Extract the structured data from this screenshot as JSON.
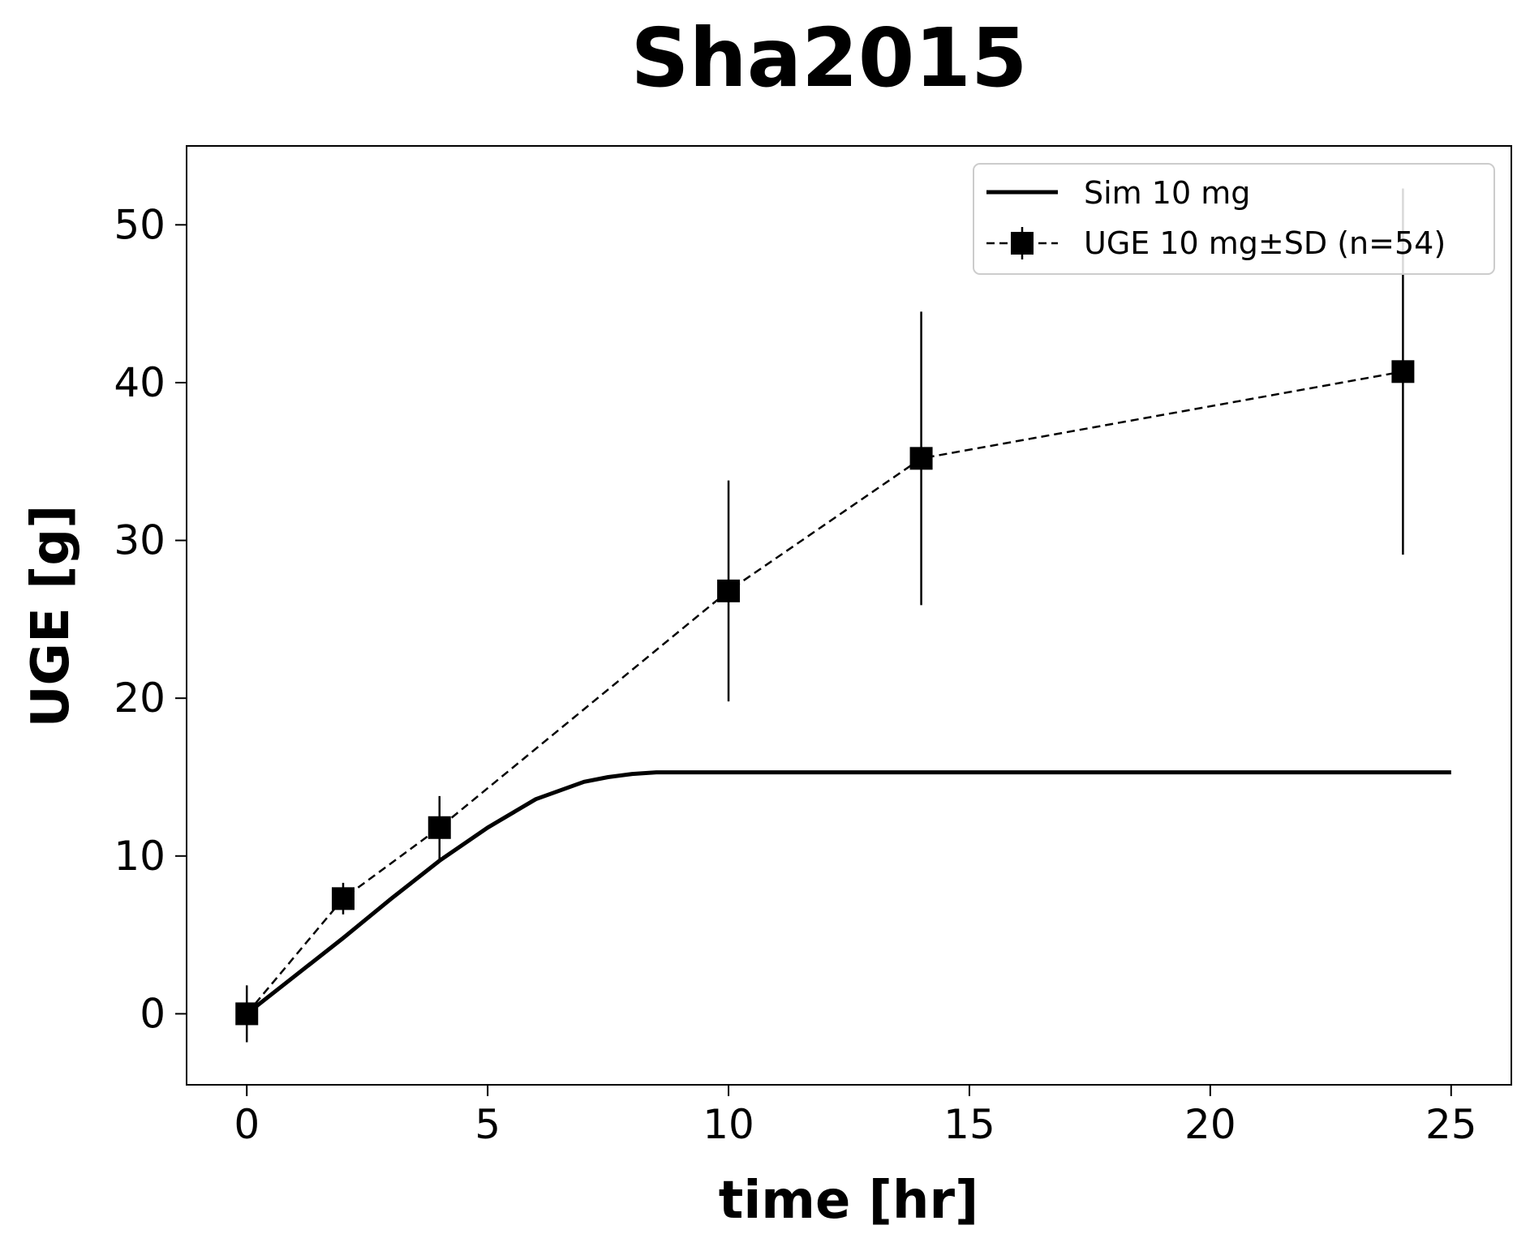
{
  "chart_data": {
    "type": "line",
    "title": "Sha2015",
    "xlabel": "time [hr]",
    "ylabel": "UGE [g]",
    "xlim": [
      -1.25,
      26.25
    ],
    "ylim": [
      -4.5,
      55
    ],
    "xticks": [
      0,
      5,
      10,
      15,
      20,
      25
    ],
    "yticks": [
      0,
      10,
      20,
      30,
      40,
      50
    ],
    "grid": false,
    "legend_position": "top-right",
    "series": [
      {
        "name": "Sim 10 mg",
        "kind": "line",
        "color": "#000000",
        "x": [
          0,
          1,
          2,
          3,
          4,
          5,
          6,
          7,
          7.5,
          8,
          8.5,
          10,
          15,
          20,
          25
        ],
        "y": [
          0,
          2.4,
          4.8,
          7.3,
          9.7,
          11.8,
          13.6,
          14.7,
          15.0,
          15.2,
          15.3,
          15.3,
          15.3,
          15.3,
          15.3
        ]
      },
      {
        "name": "UGE 10 mg±SD (n=54)",
        "kind": "errorbar",
        "color": "#000000",
        "x": [
          0,
          2,
          4,
          10,
          14,
          24
        ],
        "y": [
          0,
          7.3,
          11.8,
          26.8,
          35.2,
          40.7
        ],
        "sd": [
          1.8,
          1.0,
          2.0,
          7.0,
          9.3,
          11.6
        ]
      }
    ]
  }
}
